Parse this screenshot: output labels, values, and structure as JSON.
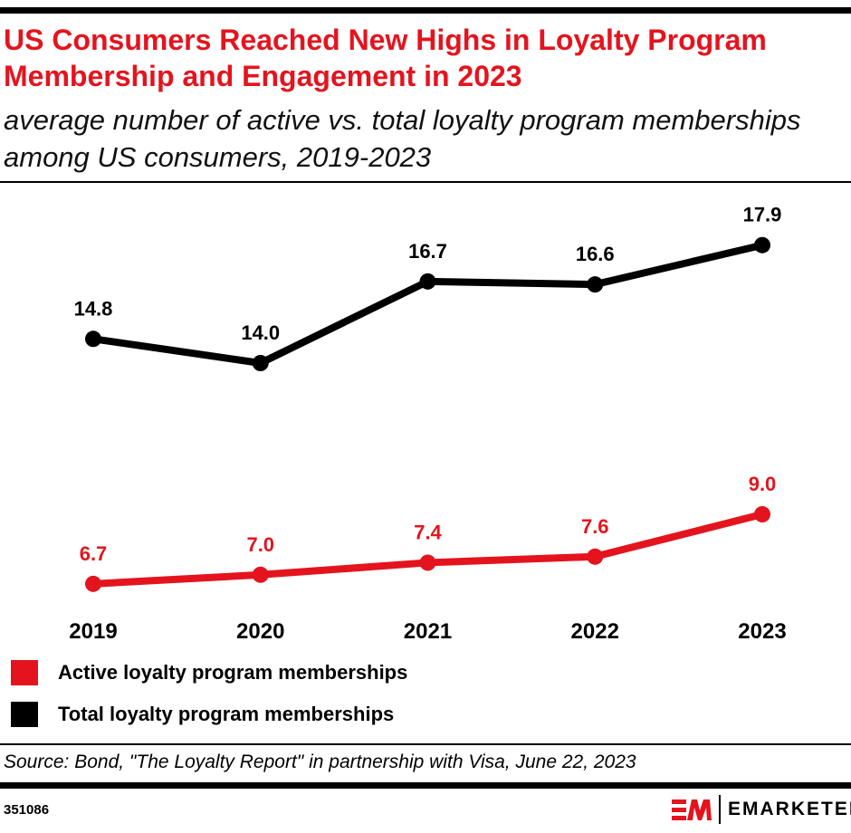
{
  "header": {
    "title": "US Consumers Reached New Highs in Loyalty Program Membership and Engagement in 2023",
    "subtitle": "average number of active vs. total loyalty program memberships among US consumers, 2019-2023"
  },
  "chart_data": {
    "type": "line",
    "title": "US Consumers Reached New Highs in Loyalty Program Membership and Engagement in 2023",
    "subtitle": "average number of active vs. total loyalty program memberships among US consumers, 2019-2023",
    "categories": [
      "2019",
      "2020",
      "2021",
      "2022",
      "2023"
    ],
    "series": [
      {
        "name": "Active loyalty program memberships",
        "color": "#e4141e",
        "values": [
          6.7,
          7.0,
          7.4,
          7.6,
          9.0
        ],
        "labels": [
          "6.7",
          "7.0",
          "7.4",
          "7.6",
          "9.0"
        ]
      },
      {
        "name": "Total loyalty program memberships",
        "color": "#000000",
        "values": [
          14.8,
          14.0,
          16.7,
          16.6,
          17.9
        ],
        "labels": [
          "14.8",
          "14.0",
          "16.7",
          "16.6",
          "17.9"
        ]
      }
    ],
    "grid": false,
    "legend": "bottom-left"
  },
  "footer": {
    "source": "Source: Bond, \"The Loyalty Report\" in partnership with Visa, June 22, 2023",
    "chart_id": "351086",
    "brand": "EMARKETER",
    "logo_mark": "EM"
  }
}
